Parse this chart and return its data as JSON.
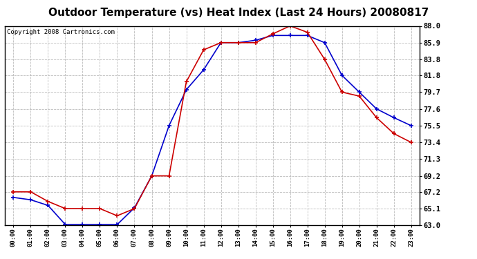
{
  "title": "Outdoor Temperature (vs) Heat Index (Last 24 Hours) 20080817",
  "copyright": "Copyright 2008 Cartronics.com",
  "x_labels": [
    "00:00",
    "01:00",
    "02:00",
    "03:00",
    "04:00",
    "05:00",
    "06:00",
    "07:00",
    "08:00",
    "09:00",
    "10:00",
    "11:00",
    "12:00",
    "13:00",
    "14:00",
    "15:00",
    "16:00",
    "17:00",
    "18:00",
    "19:00",
    "20:00",
    "21:00",
    "22:00",
    "23:00"
  ],
  "temp_blue": [
    66.5,
    66.2,
    65.5,
    63.1,
    63.1,
    63.1,
    63.1,
    65.2,
    69.2,
    75.5,
    80.0,
    82.5,
    85.9,
    85.9,
    86.2,
    86.8,
    86.8,
    86.8,
    85.9,
    81.8,
    79.7,
    77.6,
    76.5,
    75.5
  ],
  "heat_red": [
    67.2,
    67.2,
    66.0,
    65.1,
    65.1,
    65.1,
    64.2,
    65.1,
    69.2,
    69.2,
    81.0,
    85.0,
    85.9,
    85.9,
    85.9,
    87.0,
    88.0,
    87.2,
    83.8,
    79.7,
    79.2,
    76.5,
    74.5,
    73.4
  ],
  "ylim": [
    63.0,
    88.0
  ],
  "yticks": [
    63.0,
    65.1,
    67.2,
    69.2,
    71.3,
    73.4,
    75.5,
    77.6,
    79.7,
    81.8,
    83.8,
    85.9,
    88.0
  ],
  "blue_color": "#0000cc",
  "red_color": "#cc0000",
  "bg_color": "#ffffff",
  "grid_color": "#bbbbbb",
  "title_fontsize": 11,
  "copyright_fontsize": 6.5
}
